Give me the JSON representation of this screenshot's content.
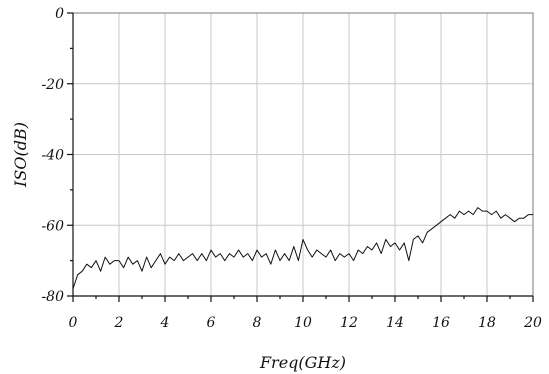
{
  "chart_data": {
    "type": "line",
    "title": "",
    "xlabel": "Freq(GHz)",
    "ylabel": "ISO(dB)",
    "xlim": [
      0,
      20
    ],
    "ylim": [
      -80,
      0
    ],
    "x_ticks": [
      "0",
      "2",
      "4",
      "6",
      "8",
      "10",
      "12",
      "14",
      "16",
      "18",
      "20"
    ],
    "y_ticks": [
      "0",
      "-20",
      "-40",
      "-60",
      "-80"
    ],
    "grid": true,
    "legend": "none",
    "series": [
      {
        "color": "#111111",
        "x": [
          0,
          0.2,
          0.4,
          0.6,
          0.8,
          1,
          1.2,
          1.4,
          1.6,
          1.8,
          2,
          2.2,
          2.4,
          2.6,
          2.8,
          3,
          3.2,
          3.4,
          3.6,
          3.8,
          4,
          4.2,
          4.4,
          4.6,
          4.8,
          5,
          5.2,
          5.4,
          5.6,
          5.8,
          6,
          6.2,
          6.4,
          6.6,
          6.8,
          7,
          7.2,
          7.4,
          7.6,
          7.8,
          8,
          8.2,
          8.4,
          8.6,
          8.8,
          9,
          9.2,
          9.4,
          9.6,
          9.8,
          10,
          10.2,
          10.4,
          10.6,
          10.8,
          11,
          11.2,
          11.4,
          11.6,
          11.8,
          12,
          12.2,
          12.4,
          12.6,
          12.8,
          13,
          13.2,
          13.4,
          13.6,
          13.8,
          14,
          14.2,
          14.4,
          14.6,
          14.8,
          15,
          15.2,
          15.4,
          15.6,
          15.8,
          16,
          16.2,
          16.4,
          16.6,
          16.8,
          17,
          17.2,
          17.4,
          17.6,
          17.8,
          18,
          18.2,
          18.4,
          18.6,
          18.8,
          19,
          19.2,
          19.4,
          19.6,
          19.8,
          20
        ],
        "y": [
          -78,
          -74,
          -73,
          -71,
          -72,
          -70,
          -73,
          -69,
          -71,
          -70,
          -70,
          -72,
          -69,
          -71,
          -70,
          -73,
          -69,
          -72,
          -70,
          -68,
          -71,
          -69,
          -70,
          -68,
          -70,
          -69,
          -68,
          -70,
          -68,
          -70,
          -67,
          -69,
          -68,
          -70,
          -68,
          -69,
          -67,
          -69,
          -68,
          -70,
          -67,
          -69,
          -68,
          -71,
          -67,
          -70,
          -68,
          -70,
          -66,
          -70,
          -64,
          -67,
          -69,
          -67,
          -68,
          -69,
          -67,
          -70,
          -68,
          -69,
          -68,
          -70,
          -67,
          -68,
          -66,
          -67,
          -65,
          -68,
          -64,
          -66,
          -65,
          -67,
          -65,
          -70,
          -64,
          -63,
          -65,
          -62,
          -61,
          -60,
          -59,
          -58,
          -57,
          -58,
          -56,
          -57,
          -56,
          -57,
          -55,
          -56,
          -56,
          -57,
          -56,
          -58,
          -57,
          -58,
          -59,
          -58,
          -58,
          -57,
          -57
        ]
      }
    ]
  }
}
